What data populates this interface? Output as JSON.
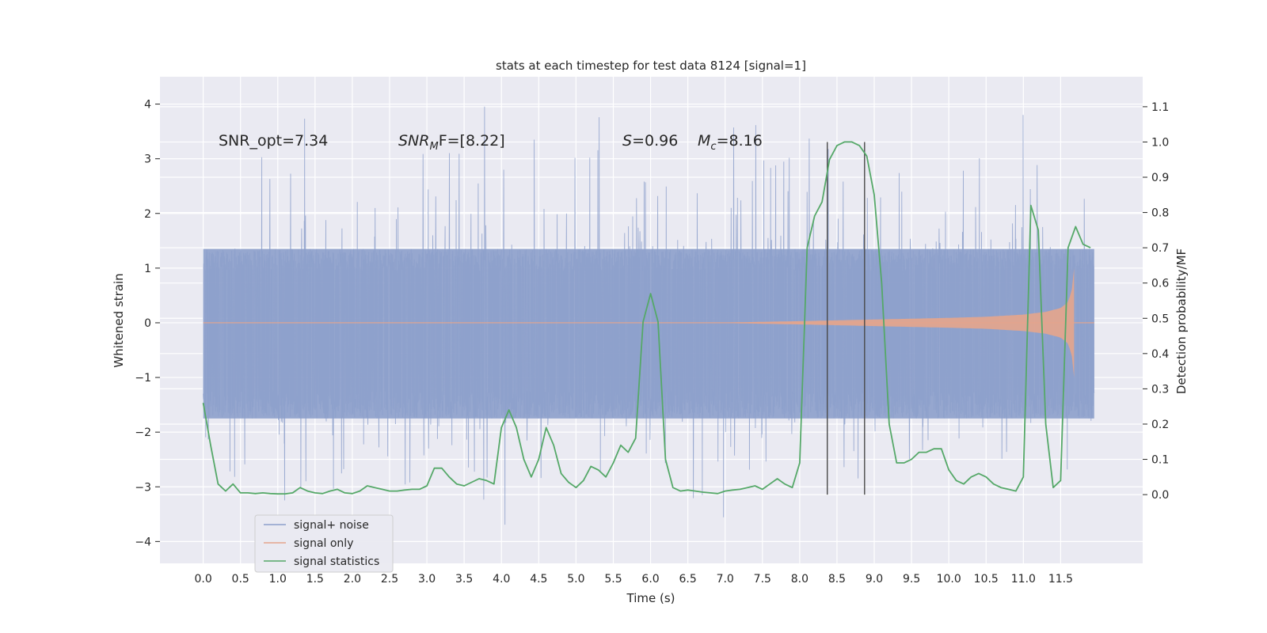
{
  "chart_data": {
    "type": "line",
    "title": "stats at each timestep for test data 8124 [signal=1]",
    "xlabel": "Time (s)",
    "ylabel_left": "Whitened strain",
    "ylabel_right": "Detection probability/MF",
    "xlim": [
      -0.58,
      12.6
    ],
    "ylim_left": [
      -4.4,
      4.5
    ],
    "ylim_right": [
      -0.195,
      1.185
    ],
    "x_ticks": [
      "0.0",
      "0.5",
      "1.0",
      "1.5",
      "2.0",
      "2.5",
      "3.0",
      "3.5",
      "4.0",
      "4.5",
      "5.0",
      "5.5",
      "6.0",
      "6.5",
      "7.0",
      "7.5",
      "8.0",
      "8.5",
      "9.0",
      "9.5",
      "10.0",
      "10.5",
      "11.0",
      "11.5"
    ],
    "y_ticks_left": [
      "4",
      "3",
      "2",
      "1",
      "0",
      "−1",
      "−2",
      "−3",
      "−4"
    ],
    "y_ticks_right": [
      "1.1",
      "1.0",
      "0.9",
      "0.8",
      "0.7",
      "0.6",
      "0.5",
      "0.4",
      "0.3",
      "0.2",
      "0.1",
      "0.0"
    ],
    "annotations": {
      "snr_opt": "SNR_opt=7.34",
      "snr_mf_main": "SNR",
      "snr_mf_sub": "M",
      "snr_mf_rest": "F=[8.22]",
      "s_main": "S",
      "s_rest": "=0.96",
      "mc_main": "M",
      "mc_sub": "c",
      "mc_rest": "=8.16"
    },
    "vlines_x": [
      8.37,
      8.87
    ],
    "legend": [
      {
        "label": "signal+ noise",
        "color": "#8da0cb"
      },
      {
        "label": "signal only",
        "color": "#e5a58c"
      },
      {
        "label": "signal statistics",
        "color": "#55a868"
      }
    ],
    "series": [
      {
        "name": "signal+ noise",
        "color": "#8da0cb",
        "x_range": [
          0.0,
          11.95
        ],
        "envelope": {
          "lower": -1.75,
          "upper": 1.35
        },
        "spike_extrema": {
          "max": 4.1,
          "min": -3.85
        }
      },
      {
        "name": "signal only",
        "color": "#e5a58c",
        "x": [
          0.0,
          7.0,
          8.0,
          9.0,
          10.0,
          10.5,
          11.0,
          11.3,
          11.5,
          11.6,
          11.65,
          11.68
        ],
        "amplitude": [
          0.0,
          0.005,
          0.03,
          0.06,
          0.09,
          0.11,
          0.15,
          0.2,
          0.27,
          0.38,
          0.6,
          1.0
        ]
      },
      {
        "name": "signal statistics",
        "color": "#55a868",
        "x": [
          0.0,
          0.1,
          0.2,
          0.3,
          0.4,
          0.5,
          0.6,
          0.7,
          0.8,
          0.9,
          1.0,
          1.1,
          1.2,
          1.3,
          1.4,
          1.5,
          1.6,
          1.7,
          1.8,
          1.9,
          2.0,
          2.1,
          2.2,
          2.3,
          2.4,
          2.5,
          2.6,
          2.7,
          2.8,
          2.9,
          3.0,
          3.1,
          3.2,
          3.3,
          3.4,
          3.5,
          3.6,
          3.7,
          3.8,
          3.9,
          4.0,
          4.1,
          4.2,
          4.3,
          4.4,
          4.5,
          4.6,
          4.7,
          4.8,
          4.9,
          5.0,
          5.1,
          5.2,
          5.3,
          5.4,
          5.5,
          5.6,
          5.7,
          5.8,
          5.9,
          6.0,
          6.1,
          6.2,
          6.3,
          6.4,
          6.5,
          6.6,
          6.7,
          6.8,
          6.9,
          7.0,
          7.1,
          7.2,
          7.3,
          7.4,
          7.5,
          7.6,
          7.7,
          7.8,
          7.9,
          8.0,
          8.1,
          8.2,
          8.3,
          8.4,
          8.5,
          8.6,
          8.7,
          8.8,
          8.9,
          9.0,
          9.1,
          9.2,
          9.3,
          9.4,
          9.5,
          9.6,
          9.7,
          9.8,
          9.9,
          10.0,
          10.1,
          10.2,
          10.3,
          10.4,
          10.5,
          10.6,
          10.7,
          10.8,
          10.9,
          11.0,
          11.1,
          11.2,
          11.3,
          11.4,
          11.5,
          11.6,
          11.7,
          11.8,
          11.9
        ],
        "y": [
          0.26,
          0.14,
          0.03,
          0.01,
          0.03,
          0.005,
          0.005,
          0.003,
          0.005,
          0.003,
          0.002,
          0.002,
          0.005,
          0.02,
          0.01,
          0.005,
          0.003,
          0.01,
          0.015,
          0.005,
          0.003,
          0.01,
          0.025,
          0.02,
          0.015,
          0.01,
          0.01,
          0.013,
          0.015,
          0.015,
          0.025,
          0.075,
          0.075,
          0.05,
          0.03,
          0.025,
          0.035,
          0.045,
          0.04,
          0.03,
          0.19,
          0.24,
          0.19,
          0.1,
          0.05,
          0.1,
          0.19,
          0.14,
          0.06,
          0.035,
          0.02,
          0.04,
          0.08,
          0.07,
          0.05,
          0.09,
          0.14,
          0.12,
          0.16,
          0.49,
          0.57,
          0.49,
          0.1,
          0.02,
          0.01,
          0.013,
          0.01,
          0.007,
          0.005,
          0.003,
          0.01,
          0.013,
          0.015,
          0.02,
          0.025,
          0.015,
          0.03,
          0.045,
          0.03,
          0.02,
          0.09,
          0.7,
          0.79,
          0.83,
          0.95,
          0.99,
          1.0,
          1.0,
          0.99,
          0.96,
          0.85,
          0.6,
          0.2,
          0.09,
          0.09,
          0.1,
          0.12,
          0.12,
          0.13,
          0.13,
          0.07,
          0.04,
          0.03,
          0.05,
          0.06,
          0.05,
          0.03,
          0.02,
          0.015,
          0.01,
          0.05,
          0.82,
          0.75,
          0.2,
          0.02,
          0.04,
          0.7,
          0.76,
          0.71,
          0.7
        ]
      }
    ]
  }
}
